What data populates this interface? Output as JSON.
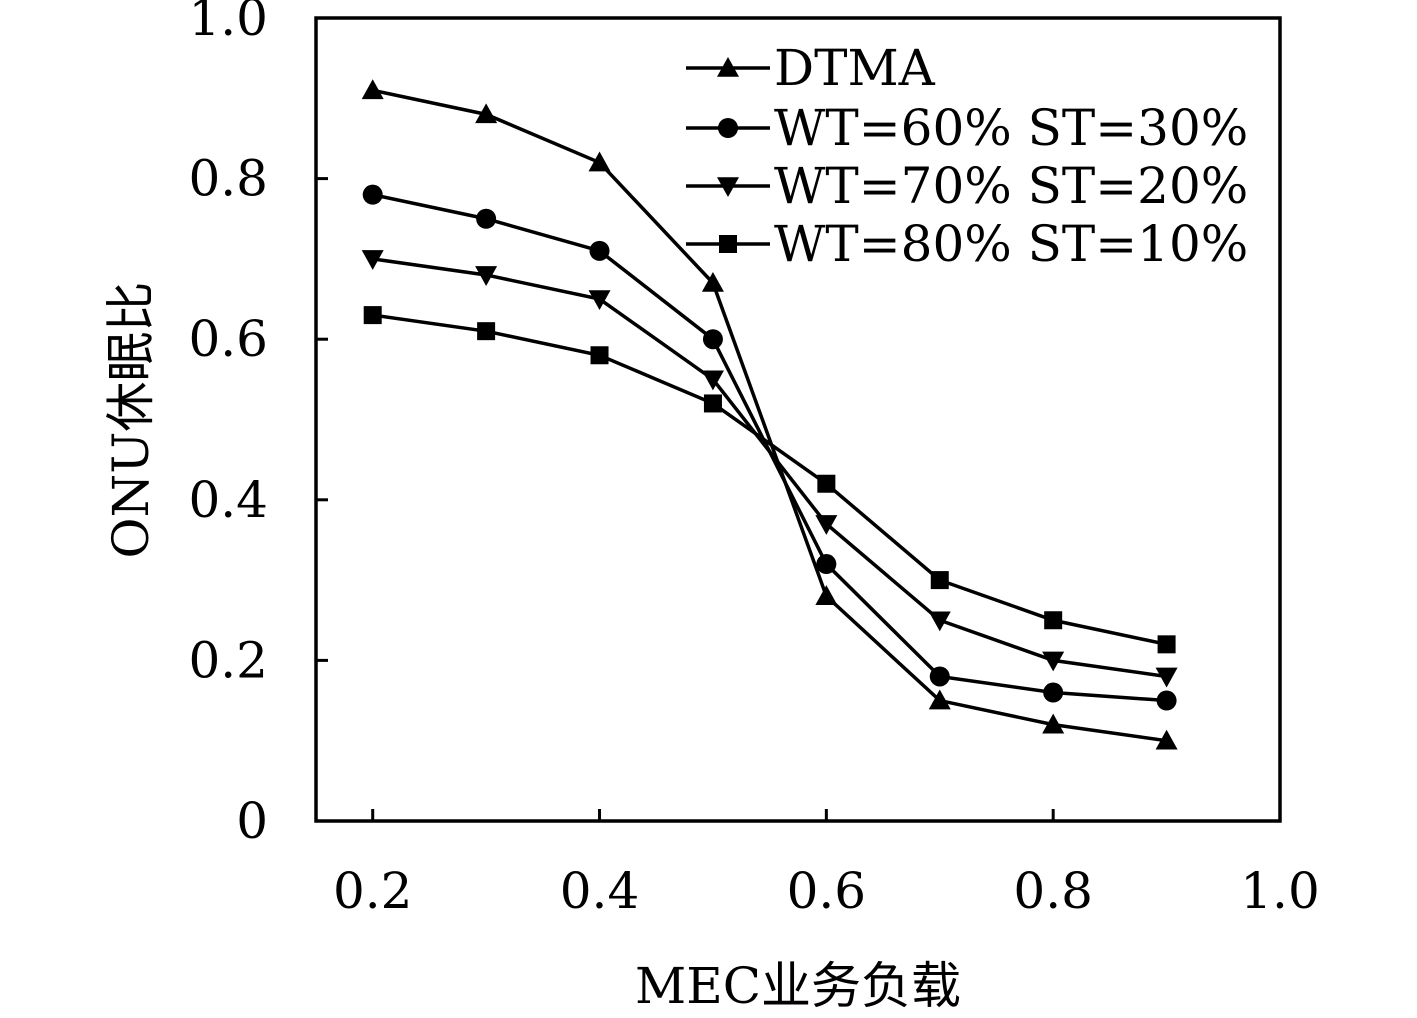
{
  "chart_data": {
    "type": "line",
    "xlabel": "MEC业务负载",
    "ylabel": "ONU休眠比",
    "xlim": [
      0.15,
      1.0
    ],
    "ylim": [
      0,
      1.0
    ],
    "x_ticks": [
      "0.2",
      "0.4",
      "0.6",
      "0.8",
      "1.0"
    ],
    "y_ticks": [
      "0",
      "0.2",
      "0.4",
      "0.6",
      "0.8",
      "1.0"
    ],
    "legend_position": "top-right",
    "grid": false,
    "x": [
      0.2,
      0.3,
      0.4,
      0.5,
      0.6,
      0.7,
      0.8,
      0.9
    ],
    "series": [
      {
        "name": "DTMA",
        "marker": "triangle-up",
        "values": [
          0.91,
          0.88,
          0.82,
          0.67,
          0.28,
          0.15,
          0.12,
          0.1
        ]
      },
      {
        "name": "WT=60% ST=30%",
        "marker": "circle",
        "values": [
          0.78,
          0.75,
          0.71,
          0.6,
          0.32,
          0.18,
          0.16,
          0.15
        ]
      },
      {
        "name": "WT=70% ST=20%",
        "marker": "triangle-down",
        "values": [
          0.7,
          0.68,
          0.65,
          0.55,
          0.37,
          0.25,
          0.2,
          0.18
        ]
      },
      {
        "name": "WT=80% ST=10%",
        "marker": "square",
        "values": [
          0.63,
          0.61,
          0.58,
          0.52,
          0.42,
          0.3,
          0.25,
          0.22
        ]
      }
    ]
  }
}
